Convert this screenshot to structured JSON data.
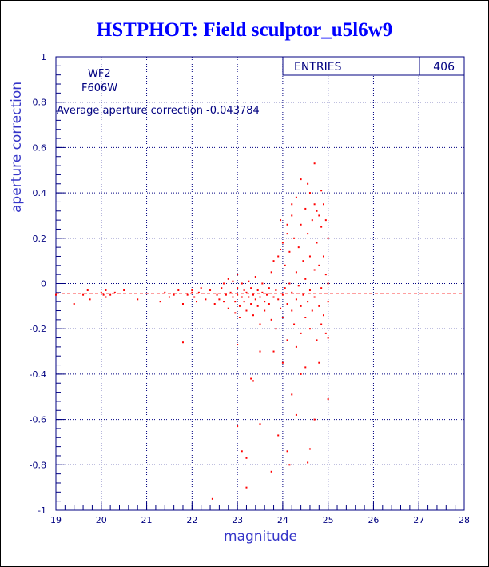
{
  "chart_data": {
    "type": "scatter",
    "title": "HSTPHOT: Field sculptor_u5l6w9",
    "xlabel": "magnitude",
    "ylabel": "aperture correction",
    "xlim": [
      19,
      28
    ],
    "ylim": [
      -1,
      1
    ],
    "x_ticks": [
      19,
      20,
      21,
      22,
      23,
      24,
      25,
      26,
      27,
      28
    ],
    "y_ticks": [
      -1,
      -0.8,
      -0.6,
      -0.4,
      -0.2,
      0,
      0.2,
      0.4,
      0.6,
      0.8,
      1
    ],
    "y_tick_labels": [
      "-1",
      "-0.8",
      "-0.6",
      "-0.4",
      "-0.2",
      "0",
      "0.2",
      "0.4",
      "0.6",
      "0.8",
      "1"
    ],
    "grid": true,
    "marker_color": "#ff0000",
    "axis_color": "#000080",
    "annotations": [
      "WF2",
      "F606W",
      "Average aperture correction  -0.043784"
    ],
    "stats_box": {
      "label": "ENTRIES",
      "value": "406"
    },
    "reference_line": {
      "y": -0.043784,
      "style": "dashed",
      "color": "#ff0000"
    },
    "points": [
      [
        19.0,
        -0.05
      ],
      [
        19.4,
        -0.09
      ],
      [
        19.6,
        -0.05
      ],
      [
        19.7,
        -0.03
      ],
      [
        19.75,
        -0.07
      ],
      [
        20.0,
        -0.04
      ],
      [
        20.05,
        -0.05
      ],
      [
        20.1,
        -0.03
      ],
      [
        20.1,
        -0.06
      ],
      [
        20.2,
        -0.05
      ],
      [
        20.3,
        -0.04
      ],
      [
        20.5,
        -0.03
      ],
      [
        20.8,
        -0.07
      ],
      [
        21.3,
        -0.08
      ],
      [
        21.4,
        -0.04
      ],
      [
        21.5,
        -0.06
      ],
      [
        21.6,
        -0.05
      ],
      [
        21.7,
        -0.03
      ],
      [
        21.8,
        -0.09
      ],
      [
        21.9,
        -0.05
      ],
      [
        22.0,
        -0.04
      ],
      [
        22.0,
        -0.03
      ],
      [
        22.05,
        -0.06
      ],
      [
        22.1,
        -0.08
      ],
      [
        22.15,
        -0.04
      ],
      [
        21.8,
        -0.26
      ],
      [
        22.2,
        -0.02
      ],
      [
        22.3,
        -0.07
      ],
      [
        22.4,
        -0.03
      ],
      [
        22.5,
        -0.09
      ],
      [
        22.55,
        -0.05
      ],
      [
        22.6,
        -0.07
      ],
      [
        22.65,
        -0.02
      ],
      [
        22.7,
        0.0
      ],
      [
        22.7,
        -0.08
      ],
      [
        22.75,
        -0.05
      ],
      [
        22.8,
        -0.11
      ],
      [
        22.8,
        0.02
      ],
      [
        22.85,
        -0.04
      ],
      [
        22.9,
        -0.06
      ],
      [
        22.9,
        0.01
      ],
      [
        22.95,
        -0.08
      ],
      [
        22.95,
        -0.13
      ],
      [
        23.0,
        -0.02
      ],
      [
        23.0,
        -0.05
      ],
      [
        23.0,
        0.04
      ],
      [
        23.05,
        -0.1
      ],
      [
        23.05,
        -0.15
      ],
      [
        23.1,
        -0.06
      ],
      [
        23.1,
        0.0
      ],
      [
        23.15,
        -0.03
      ],
      [
        23.15,
        -0.08
      ],
      [
        23.2,
        -0.12
      ],
      [
        23.2,
        -0.04
      ],
      [
        23.25,
        0.01
      ],
      [
        23.25,
        -0.06
      ],
      [
        23.3,
        -0.09
      ],
      [
        23.3,
        -0.02
      ],
      [
        23.35,
        -0.05
      ],
      [
        23.35,
        -0.14
      ],
      [
        23.4,
        -0.07
      ],
      [
        23.4,
        0.03
      ],
      [
        23.45,
        -0.1
      ],
      [
        23.45,
        -0.03
      ],
      [
        23.5,
        -0.06
      ],
      [
        23.5,
        -0.18
      ],
      [
        23.55,
        -0.04
      ],
      [
        23.55,
        0.0
      ],
      [
        23.6,
        -0.08
      ],
      [
        23.6,
        -0.12
      ],
      [
        23.65,
        -0.05
      ],
      [
        23.7,
        -0.02
      ],
      [
        23.7,
        -0.09
      ],
      [
        23.75,
        -0.16
      ],
      [
        23.75,
        0.05
      ],
      [
        23.8,
        -0.06
      ],
      [
        23.8,
        0.1
      ],
      [
        23.85,
        -0.03
      ],
      [
        23.85,
        -0.2
      ],
      [
        23.9,
        0.12
      ],
      [
        23.9,
        -0.07
      ],
      [
        23.95,
        0.15
      ],
      [
        23.95,
        -0.11
      ],
      [
        24.0,
        0.18
      ],
      [
        24.0,
        -0.05
      ],
      [
        24.0,
        -0.15
      ],
      [
        24.05,
        0.08
      ],
      [
        24.05,
        -0.02
      ],
      [
        24.1,
        0.22
      ],
      [
        24.1,
        -0.09
      ],
      [
        24.1,
        -0.25
      ],
      [
        24.15,
        0.14
      ],
      [
        24.15,
        0.0
      ],
      [
        24.2,
        0.3
      ],
      [
        24.2,
        -0.12
      ],
      [
        24.2,
        -0.04
      ],
      [
        24.25,
        0.2
      ],
      [
        24.25,
        -0.18
      ],
      [
        24.3,
        0.05
      ],
      [
        24.3,
        -0.07
      ],
      [
        24.3,
        -0.28
      ],
      [
        24.35,
        0.16
      ],
      [
        24.35,
        -0.01
      ],
      [
        24.4,
        0.26
      ],
      [
        24.4,
        -0.1
      ],
      [
        24.4,
        -0.22
      ],
      [
        24.45,
        0.1
      ],
      [
        24.45,
        -0.05
      ],
      [
        24.5,
        0.33
      ],
      [
        24.5,
        0.02
      ],
      [
        24.5,
        -0.15
      ],
      [
        24.55,
        0.22
      ],
      [
        24.55,
        -0.08
      ],
      [
        24.6,
        0.4
      ],
      [
        24.6,
        0.12
      ],
      [
        24.6,
        -0.03
      ],
      [
        24.6,
        -0.2
      ],
      [
        24.65,
        0.28
      ],
      [
        24.65,
        -0.12
      ],
      [
        24.7,
        0.35
      ],
      [
        24.7,
        0.06
      ],
      [
        24.7,
        -0.06
      ],
      [
        24.75,
        0.32
      ],
      [
        24.75,
        0.18
      ],
      [
        24.75,
        -0.25
      ],
      [
        24.8,
        0.3
      ],
      [
        24.8,
        0.08
      ],
      [
        24.8,
        -0.1
      ],
      [
        24.85,
        0.25
      ],
      [
        24.85,
        -0.02
      ],
      [
        24.85,
        -0.18
      ],
      [
        24.9,
        0.35
      ],
      [
        24.9,
        0.12
      ],
      [
        24.9,
        -0.14
      ],
      [
        24.95,
        0.28
      ],
      [
        24.95,
        0.04
      ],
      [
        24.95,
        -0.22
      ],
      [
        25.0,
        0.2
      ],
      [
        25.0,
        -0.08
      ],
      [
        25.0,
        -0.24
      ],
      [
        25.0,
        0.0
      ],
      [
        24.7,
        0.53
      ],
      [
        24.4,
        0.46
      ],
      [
        24.55,
        0.44
      ],
      [
        24.85,
        0.41
      ],
      [
        24.3,
        0.38
      ],
      [
        24.1,
        0.26
      ],
      [
        23.95,
        0.28
      ],
      [
        24.2,
        0.35
      ],
      [
        23.0,
        -0.27
      ],
      [
        23.3,
        -0.42
      ],
      [
        23.35,
        -0.43
      ],
      [
        23.5,
        -0.3
      ],
      [
        23.8,
        -0.3
      ],
      [
        24.0,
        -0.35
      ],
      [
        24.4,
        -0.4
      ],
      [
        24.5,
        -0.37
      ],
      [
        24.8,
        -0.35
      ],
      [
        24.2,
        -0.49
      ],
      [
        24.3,
        -0.58
      ],
      [
        24.7,
        -0.6
      ],
      [
        25.0,
        -0.51
      ],
      [
        23.9,
        -0.67
      ],
      [
        23.5,
        -0.62
      ],
      [
        23.0,
        -0.63
      ],
      [
        23.1,
        -0.74
      ],
      [
        23.2,
        -0.77
      ],
      [
        23.75,
        -0.83
      ],
      [
        23.2,
        -0.9
      ],
      [
        24.1,
        -0.74
      ],
      [
        24.15,
        -0.8
      ],
      [
        24.6,
        -0.73
      ],
      [
        24.55,
        -0.79
      ],
      [
        22.45,
        -0.95
      ]
    ]
  }
}
